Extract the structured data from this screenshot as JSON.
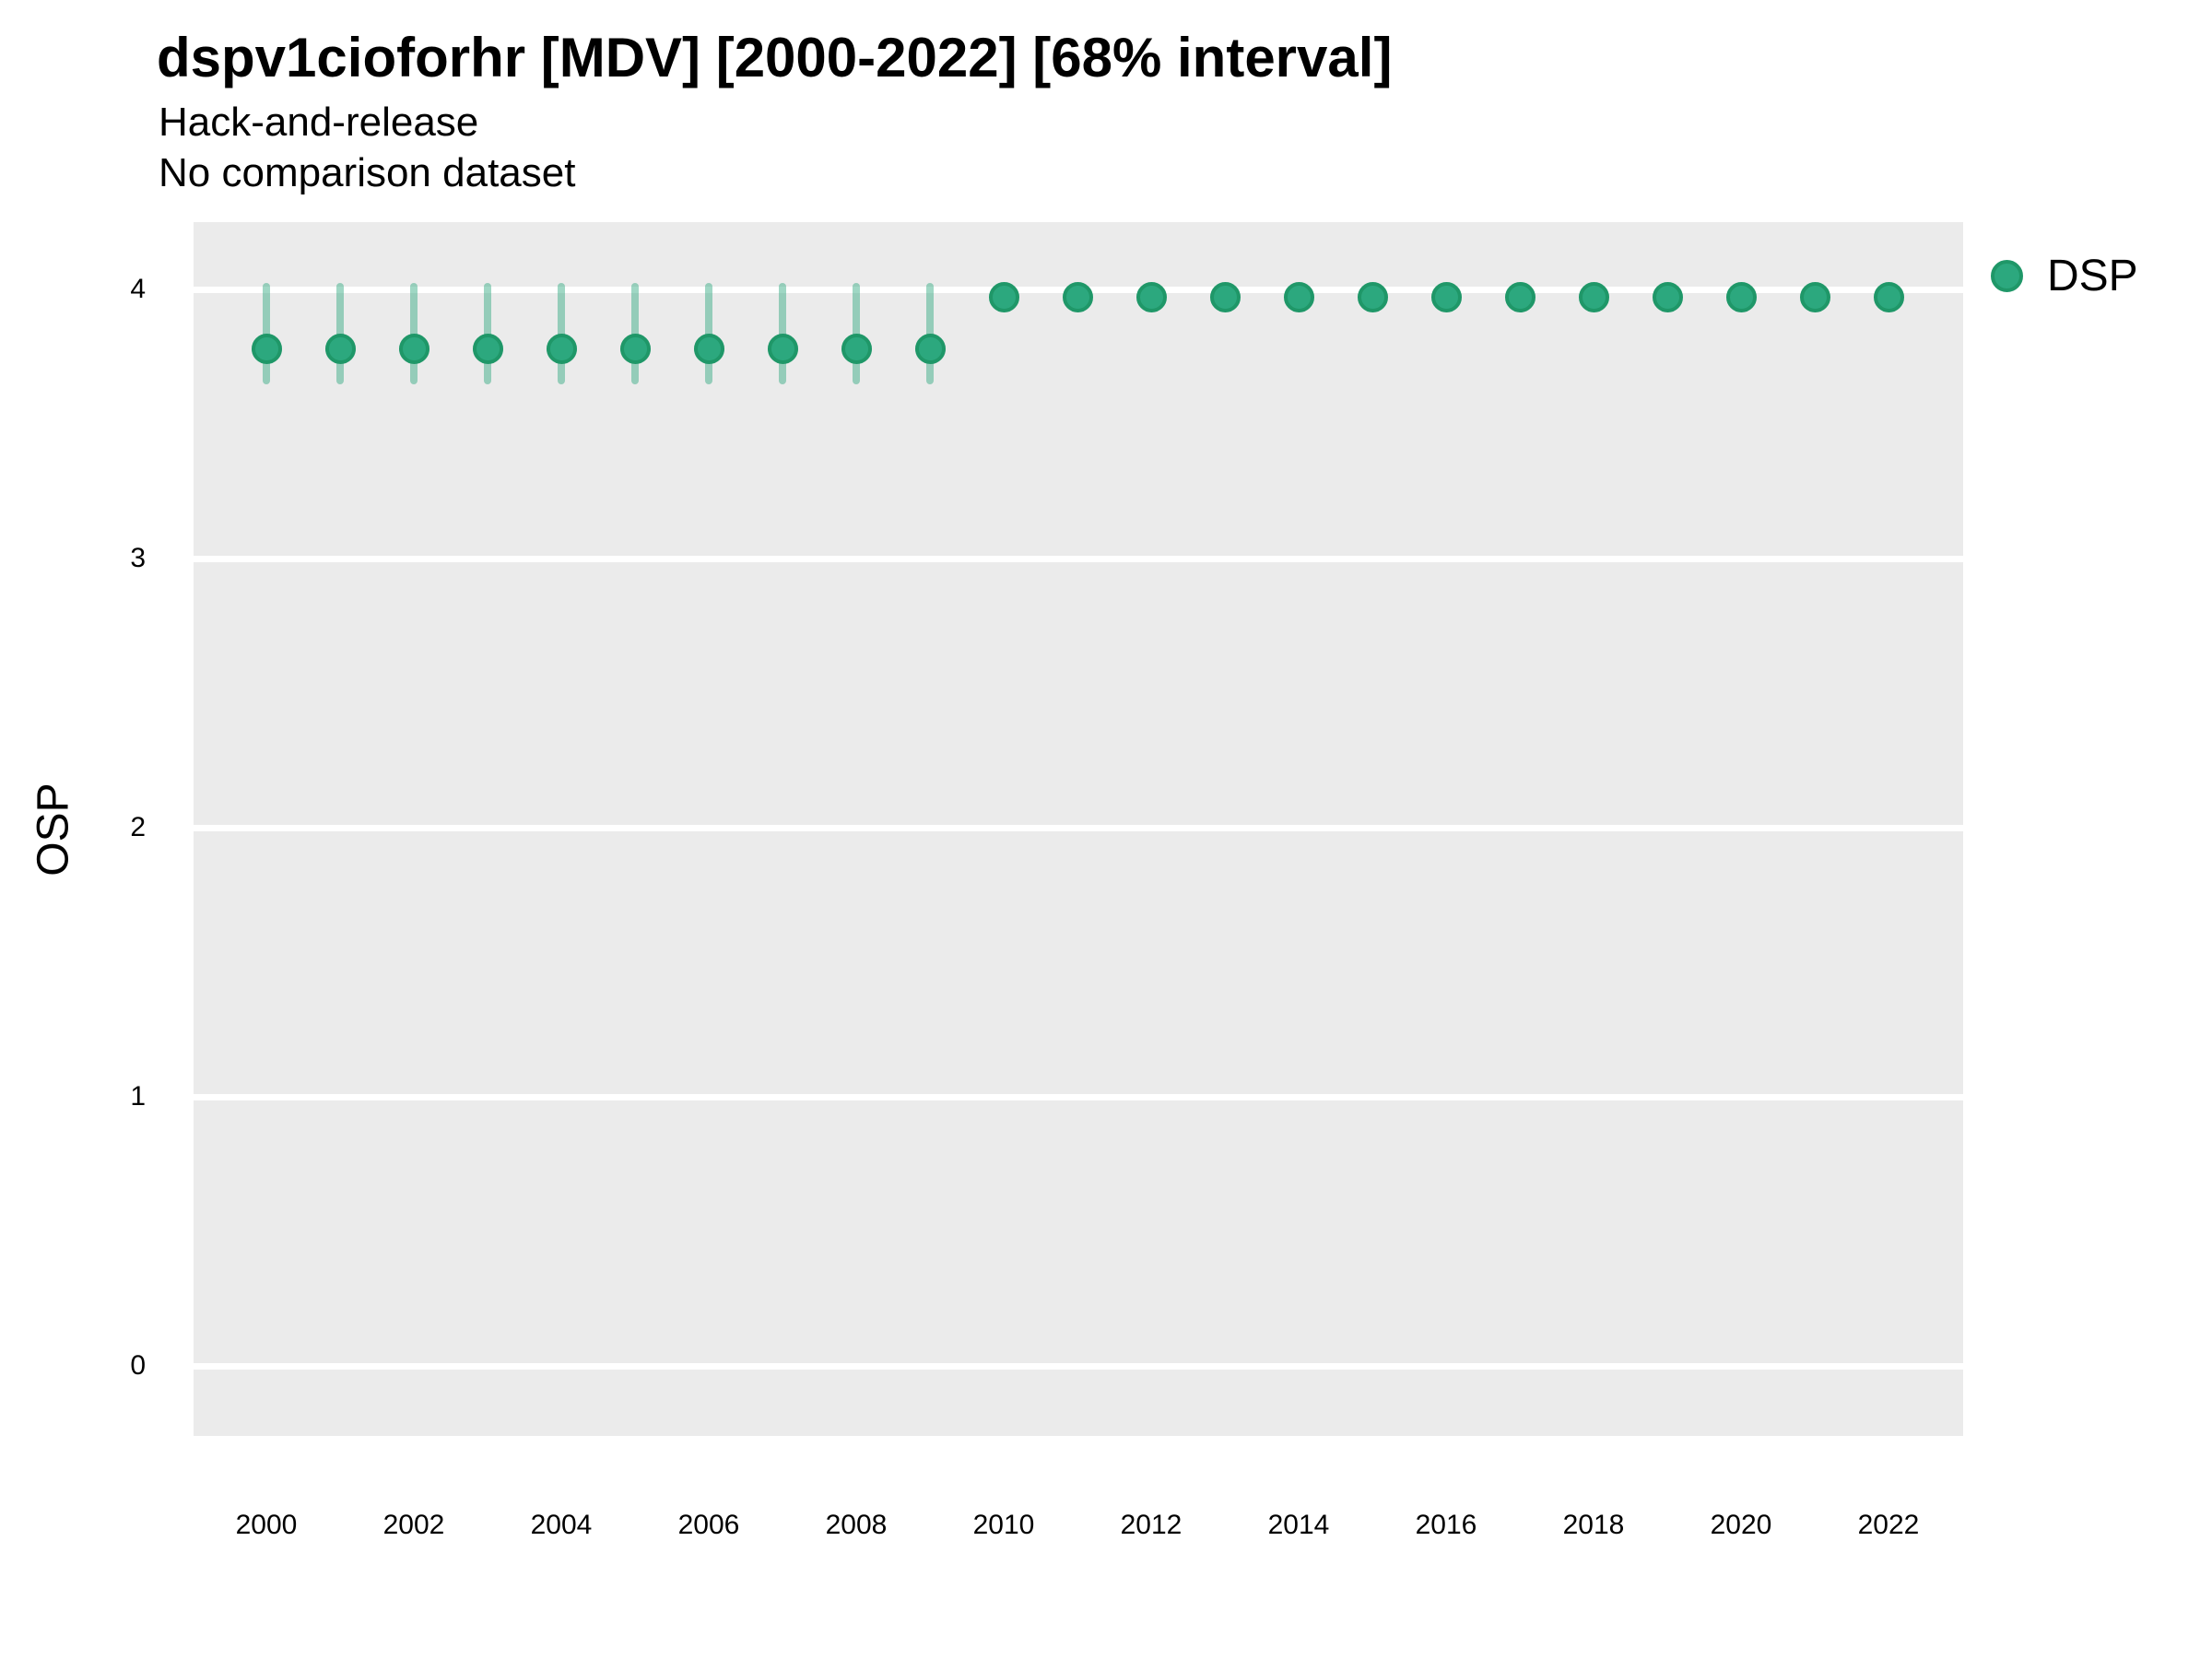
{
  "header": {
    "title": "dspv1cioforhr [MDV] [2000-2022] [68% interval]",
    "subtitle1": "Hack-and-release",
    "subtitle2": "No comparison dataset"
  },
  "legend": {
    "label": "DSP"
  },
  "y_axis": {
    "title": "OSP",
    "tick_labels": [
      "4",
      "3",
      "2",
      "1",
      "0"
    ]
  },
  "x_axis": {
    "tick_labels": [
      "2000",
      "2002",
      "2004",
      "2006",
      "2008",
      "2010",
      "2012",
      "2014",
      "2016",
      "2018",
      "2020",
      "2022"
    ]
  },
  "chart_data": {
    "type": "scatter",
    "subtype": "pointrange",
    "title": "dspv1cioforhr [MDV] [2000-2022] [68% interval]",
    "subtitle": [
      "Hack-and-release",
      "No comparison dataset"
    ],
    "xlabel": "",
    "ylabel": "OSP",
    "interval_level": "68%",
    "legend_position": "right",
    "grid": "major horizontal white gridlines on gray panel",
    "x": [
      2000,
      2001,
      2002,
      2003,
      2004,
      2005,
      2006,
      2007,
      2008,
      2009,
      2010,
      2011,
      2012,
      2013,
      2014,
      2015,
      2016,
      2017,
      2018,
      2019,
      2020,
      2021,
      2022
    ],
    "series": [
      {
        "name": "DSP",
        "values": [
          3.78,
          3.78,
          3.78,
          3.78,
          3.78,
          3.78,
          3.78,
          3.78,
          3.78,
          3.78,
          3.97,
          3.97,
          3.97,
          3.97,
          3.97,
          3.97,
          3.97,
          3.97,
          3.97,
          3.97,
          3.97,
          3.97,
          3.97
        ],
        "lower": [
          3.66,
          3.66,
          3.66,
          3.66,
          3.66,
          3.66,
          3.66,
          3.66,
          3.66,
          3.66,
          null,
          null,
          null,
          null,
          null,
          null,
          null,
          null,
          null,
          null,
          null,
          null,
          null
        ],
        "upper": [
          4.01,
          4.01,
          4.01,
          4.01,
          4.01,
          4.01,
          4.01,
          4.01,
          4.01,
          4.01,
          null,
          null,
          null,
          null,
          null,
          null,
          null,
          null,
          null,
          null,
          null,
          null,
          null
        ]
      }
    ],
    "yticks": [
      0,
      1,
      2,
      3,
      4
    ],
    "xticks": [
      2000,
      2002,
      2004,
      2006,
      2008,
      2010,
      2012,
      2014,
      2016,
      2018,
      2020,
      2022
    ],
    "ylim": [
      -0.26,
      4.25
    ],
    "colors": {
      "point_fill": "#2CA87E",
      "point_stroke": "#1F9768",
      "interval": "rgba(43, 167, 125, 0.45)",
      "panel_background": "#EBEBEB",
      "gridline": "#FFFFFF",
      "text": "#000000"
    }
  }
}
